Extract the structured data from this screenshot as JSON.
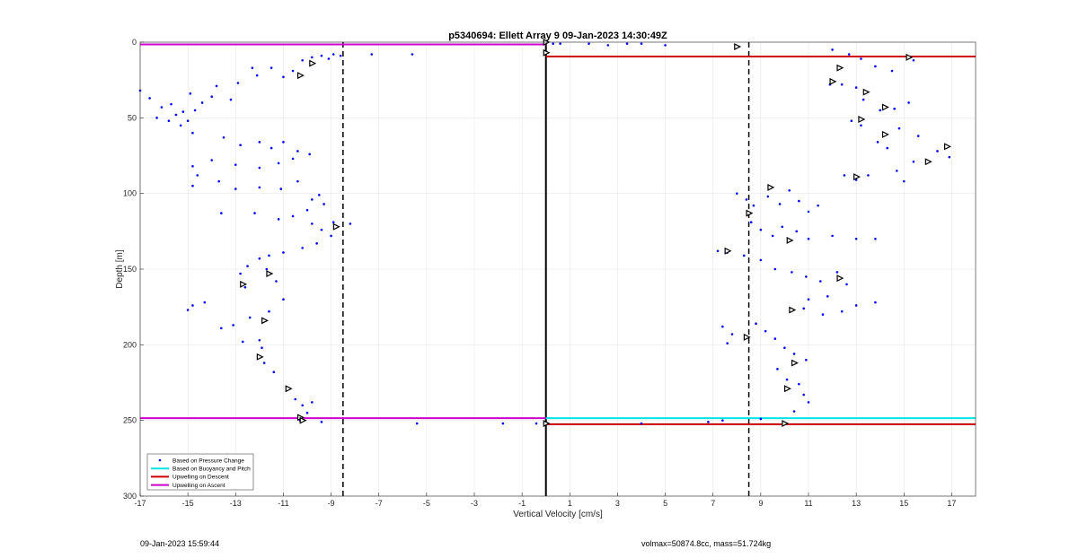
{
  "footer": {
    "left": "09-Jan-2023 15:59:44",
    "right": "volmax=50874.8cc, mass=51.724kg"
  },
  "colors": {
    "pressure": "#0000ff",
    "buoyancy": "#00e5e5",
    "descent": "#cc0000",
    "ascent": "#cc00cc",
    "grid": "#e6e6e6"
  },
  "chart_data": {
    "type": "scatter",
    "title": "p5340694: Ellett Array 9 09-Jan-2023 14:30:49Z",
    "xlabel": "Vertical Velocity [cm/s]",
    "ylabel": "Depth [m]",
    "xlim": [
      -17,
      18
    ],
    "ylim": [
      0,
      300
    ],
    "y_reversed": true,
    "grid": true,
    "xticks": [
      -17,
      -15,
      -13,
      -11,
      -9,
      -7,
      -5,
      -3,
      -1,
      1,
      3,
      5,
      7,
      9,
      11,
      13,
      15,
      17
    ],
    "yticks": [
      0,
      50,
      100,
      150,
      200,
      250,
      300
    ],
    "legend_position": "bottom-left",
    "legend": [
      {
        "label": "Based on Pressure Change",
        "style": "dot",
        "color": "#0000ff"
      },
      {
        "label": "Based on Buoyancy and Pitch",
        "style": "line",
        "color": "#00e5e5"
      },
      {
        "label": "Upwelling on Descent",
        "style": "line",
        "color": "#cc0000"
      },
      {
        "label": "Upwelling on Ascent",
        "style": "line",
        "color": "#cc00cc"
      }
    ],
    "vertical_lines": [
      {
        "x": -8.5,
        "style": "dashed",
        "color": "#000000"
      },
      {
        "x": 0,
        "style": "solid",
        "color": "#000000"
      },
      {
        "x": 8.5,
        "style": "dashed",
        "color": "#000000"
      }
    ],
    "line_segments": [
      {
        "series": "Upwelling on Ascent",
        "x": [
          -17,
          0
        ],
        "y": [
          1.5,
          1.5
        ],
        "color": "#cc00cc"
      },
      {
        "series": "Upwelling on Ascent",
        "x": [
          -17,
          0
        ],
        "y": [
          248.5,
          248.5
        ],
        "color": "#cc00cc"
      },
      {
        "series": "Upwelling on Descent",
        "x": [
          0,
          18
        ],
        "y": [
          9.5,
          9.5
        ],
        "color": "#cc0000"
      },
      {
        "series": "Upwelling on Descent",
        "x": [
          0,
          18
        ],
        "y": [
          252.5,
          252.5
        ],
        "color": "#cc0000"
      },
      {
        "series": "Based on Buoyancy and Pitch",
        "x": [
          0,
          18
        ],
        "y": [
          248.5,
          248.5
        ],
        "color": "#00e5e5"
      }
    ],
    "series": [
      {
        "name": "Based on Pressure Change",
        "points": [
          [
            -17.0,
            32
          ],
          [
            -16.6,
            37
          ],
          [
            -16.3,
            50
          ],
          [
            -16.1,
            43
          ],
          [
            -15.8,
            52
          ],
          [
            -15.7,
            41
          ],
          [
            -15.5,
            48
          ],
          [
            -15.3,
            55
          ],
          [
            -15.2,
            46
          ],
          [
            -15.0,
            52
          ],
          [
            -14.9,
            34
          ],
          [
            -14.8,
            60
          ],
          [
            -14.7,
            45
          ],
          [
            -14.4,
            40
          ],
          [
            -14.0,
            36
          ],
          [
            -13.8,
            29
          ],
          [
            -13.5,
            63
          ],
          [
            -13.2,
            38
          ],
          [
            -12.9,
            27
          ],
          [
            -12.3,
            17
          ],
          [
            -12.1,
            22
          ],
          [
            -11.5,
            17
          ],
          [
            -11.0,
            23
          ],
          [
            -10.6,
            19
          ],
          [
            -10.2,
            12
          ],
          [
            -9.8,
            10
          ],
          [
            -9.4,
            9
          ],
          [
            -9.1,
            11
          ],
          [
            -8.9,
            8
          ],
          [
            -8.6,
            9
          ],
          [
            -7.3,
            8
          ],
          [
            -5.6,
            8
          ],
          [
            -12.8,
            68
          ],
          [
            -12.0,
            66
          ],
          [
            -11.5,
            70
          ],
          [
            -11.0,
            66
          ],
          [
            -10.4,
            72
          ],
          [
            -9.9,
            74
          ],
          [
            -10.6,
            77
          ],
          [
            -11.2,
            80
          ],
          [
            -12.0,
            83
          ],
          [
            -13.0,
            81
          ],
          [
            -14.0,
            78
          ],
          [
            -14.8,
            82
          ],
          [
            -14.6,
            88
          ],
          [
            -14.8,
            95
          ],
          [
            -13.7,
            92
          ],
          [
            -13.0,
            97
          ],
          [
            -12.0,
            96
          ],
          [
            -11.1,
            97
          ],
          [
            -10.4,
            92
          ],
          [
            -9.8,
            104
          ],
          [
            -9.5,
            101
          ],
          [
            -9.3,
            107
          ],
          [
            -10.0,
            111
          ],
          [
            -10.6,
            115
          ],
          [
            -11.2,
            117
          ],
          [
            -12.2,
            113
          ],
          [
            -13.6,
            113
          ],
          [
            -9.8,
            120
          ],
          [
            -9.4,
            124
          ],
          [
            -9.0,
            128
          ],
          [
            -8.9,
            119
          ],
          [
            -8.2,
            120
          ],
          [
            -9.6,
            133
          ],
          [
            -10.2,
            136
          ],
          [
            -11.0,
            139
          ],
          [
            -11.6,
            141
          ],
          [
            -12.0,
            143
          ],
          [
            -12.5,
            148
          ],
          [
            -12.8,
            153
          ],
          [
            -12.6,
            162
          ],
          [
            -11.7,
            150
          ],
          [
            -11.3,
            158
          ],
          [
            -11.0,
            170
          ],
          [
            -11.6,
            178
          ],
          [
            -12.4,
            182
          ],
          [
            -13.1,
            187
          ],
          [
            -13.6,
            189
          ],
          [
            -12.7,
            198
          ],
          [
            -12.0,
            197
          ],
          [
            -11.9,
            202
          ],
          [
            -11.8,
            212
          ],
          [
            -11.4,
            218
          ],
          [
            -14.3,
            172
          ],
          [
            -14.8,
            174
          ],
          [
            -15.0,
            177
          ],
          [
            -10.5,
            236
          ],
          [
            -10.2,
            240
          ],
          [
            -10.0,
            245
          ],
          [
            -9.8,
            238
          ],
          [
            -10.3,
            250
          ],
          [
            -9.4,
            251
          ],
          [
            -5.4,
            252
          ],
          [
            -1.8,
            252
          ],
          [
            -0.4,
            252
          ],
          [
            0.3,
            1
          ],
          [
            0.6,
            1
          ],
          [
            1.8,
            1
          ],
          [
            2.6,
            2
          ],
          [
            3.4,
            1
          ],
          [
            4.0,
            1
          ],
          [
            5.0,
            2
          ],
          [
            12.0,
            5
          ],
          [
            12.7,
            8
          ],
          [
            13.2,
            11
          ],
          [
            13.8,
            16
          ],
          [
            14.5,
            19
          ],
          [
            15.4,
            12
          ],
          [
            13.0,
            30
          ],
          [
            12.4,
            28
          ],
          [
            11.9,
            28
          ],
          [
            13.3,
            38
          ],
          [
            14.0,
            45
          ],
          [
            14.6,
            44
          ],
          [
            15.2,
            40
          ],
          [
            13.2,
            55
          ],
          [
            12.8,
            52
          ],
          [
            14.8,
            57
          ],
          [
            15.6,
            62
          ],
          [
            13.9,
            66
          ],
          [
            14.3,
            70
          ],
          [
            16.4,
            72
          ],
          [
            16.9,
            76
          ],
          [
            15.4,
            79
          ],
          [
            14.7,
            85
          ],
          [
            13.5,
            88
          ],
          [
            13.0,
            91
          ],
          [
            12.5,
            88
          ],
          [
            15.0,
            92
          ],
          [
            8.0,
            100
          ],
          [
            8.4,
            104
          ],
          [
            8.7,
            108
          ],
          [
            9.3,
            102
          ],
          [
            9.8,
            107
          ],
          [
            10.2,
            98
          ],
          [
            10.6,
            105
          ],
          [
            11.0,
            112
          ],
          [
            11.4,
            108
          ],
          [
            8.6,
            119
          ],
          [
            9.0,
            124
          ],
          [
            9.5,
            128
          ],
          [
            9.9,
            122
          ],
          [
            10.5,
            125
          ],
          [
            11.0,
            130
          ],
          [
            12.0,
            128
          ],
          [
            13.0,
            130
          ],
          [
            13.8,
            130
          ],
          [
            7.2,
            138
          ],
          [
            7.6,
            139
          ],
          [
            8.3,
            141
          ],
          [
            9.0,
            144
          ],
          [
            9.6,
            150
          ],
          [
            10.3,
            152
          ],
          [
            10.9,
            155
          ],
          [
            11.5,
            158
          ],
          [
            12.2,
            152
          ],
          [
            12.6,
            160
          ],
          [
            11.8,
            168
          ],
          [
            11.0,
            170
          ],
          [
            10.8,
            176
          ],
          [
            11.6,
            180
          ],
          [
            12.4,
            178
          ],
          [
            13.0,
            174
          ],
          [
            13.8,
            172
          ],
          [
            7.4,
            188
          ],
          [
            7.8,
            193
          ],
          [
            7.6,
            199
          ],
          [
            8.8,
            186
          ],
          [
            9.2,
            191
          ],
          [
            9.6,
            196
          ],
          [
            10.0,
            202
          ],
          [
            10.4,
            206
          ],
          [
            10.9,
            210
          ],
          [
            9.7,
            216
          ],
          [
            10.1,
            223
          ],
          [
            10.6,
            226
          ],
          [
            10.8,
            233
          ],
          [
            11.0,
            238
          ],
          [
            10.4,
            244
          ],
          [
            6.8,
            251
          ],
          [
            9.0,
            249
          ],
          [
            4.0,
            252
          ],
          [
            7.4,
            250
          ]
        ]
      },
      {
        "name": "",
        "marker": "triangle",
        "points": [
          [
            -9.8,
            14
          ],
          [
            -10.3,
            22
          ],
          [
            -8.8,
            122
          ],
          [
            -11.6,
            153
          ],
          [
            -12.7,
            160
          ],
          [
            -11.8,
            184
          ],
          [
            -12.0,
            208
          ],
          [
            -10.8,
            229
          ],
          [
            -10.3,
            248
          ],
          [
            -10.2,
            250
          ],
          [
            0.0,
            0
          ],
          [
            0.0,
            7
          ],
          [
            0.0,
            252
          ],
          [
            8.0,
            3
          ],
          [
            15.2,
            10
          ],
          [
            12.3,
            17
          ],
          [
            12.0,
            26
          ],
          [
            13.4,
            33
          ],
          [
            14.2,
            43
          ],
          [
            13.2,
            51
          ],
          [
            14.2,
            61
          ],
          [
            16.8,
            69
          ],
          [
            16.0,
            79
          ],
          [
            13.0,
            89
          ],
          [
            9.4,
            96
          ],
          [
            8.5,
            113
          ],
          [
            10.2,
            131
          ],
          [
            7.6,
            138
          ],
          [
            12.3,
            156
          ],
          [
            10.3,
            177
          ],
          [
            8.4,
            195
          ],
          [
            10.4,
            212
          ],
          [
            10.1,
            229
          ],
          [
            10.0,
            252
          ]
        ]
      }
    ]
  }
}
